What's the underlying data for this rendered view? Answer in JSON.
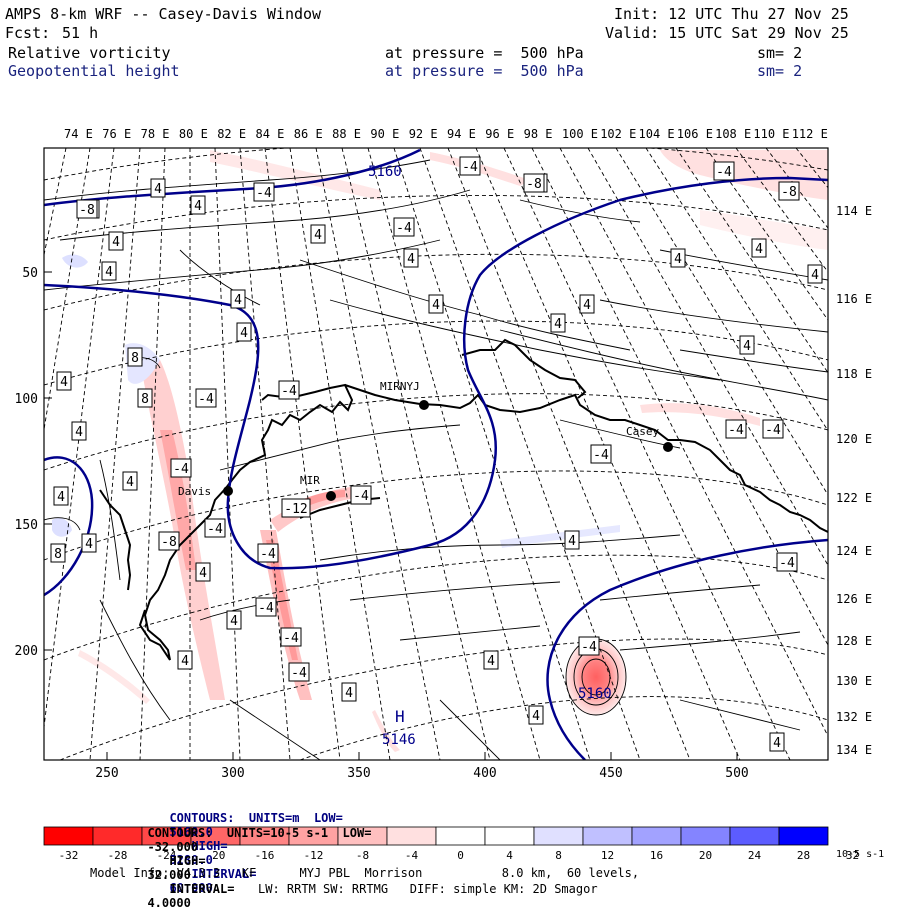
{
  "header": {
    "title": "AMPS 8-km WRF -- Casey-Davis Window",
    "fcst_label": "Fcst:",
    "fcst_value": "51 h",
    "init": "Init: 12 UTC Thu 27 Nov 25",
    "valid": "Valid: 15 UTC Sat 29 Nov 25",
    "field1": {
      "name": "Relative vorticity",
      "level": "at pressure =  500 hPa",
      "sm": "sm= 2"
    },
    "field2": {
      "name": "Geopotential height",
      "level": "at pressure =  500 hPa",
      "sm": "sm= 2"
    }
  },
  "lon_top": [
    "74 E",
    "76 E",
    "78 E",
    "80 E",
    "82 E",
    "84 E",
    "86 E",
    "88 E",
    "90 E",
    "92 E",
    "94 E",
    "96 E",
    "98 E",
    "100 E",
    "102 E",
    "104 E",
    "106 E",
    "108 E",
    "110 E",
    "112 E"
  ],
  "lon_right": [
    "114 E",
    "116 E",
    "118 E",
    "120 E",
    "122 E",
    "124 E",
    "126 E",
    "128 E",
    "130 E",
    "132 E",
    "134 E"
  ],
  "y_ticks": [
    "50",
    "100",
    "150",
    "200"
  ],
  "x_ticks": [
    "250",
    "300",
    "350",
    "400",
    "450",
    "500"
  ],
  "stations": [
    {
      "name": "MIRNYJ"
    },
    {
      "name": "Casey"
    },
    {
      "name": "Davis"
    },
    {
      "name": "MIR"
    }
  ],
  "height_labels": [
    "5160",
    "5160",
    "5160",
    "5146"
  ],
  "height_low_marker": "H",
  "vort_labels": [
    "-4",
    "-4",
    "-4",
    "-4",
    "-4",
    "-4",
    "-4",
    "-4",
    "-4",
    "-4",
    "-4",
    "-4",
    "-4",
    "-4",
    "-4",
    "-4",
    "-4",
    "-4",
    "-4",
    "-4",
    "4",
    "4",
    "4",
    "4",
    "4",
    "4",
    "4",
    "4",
    "4",
    "4",
    "4",
    "4",
    "4",
    "4",
    "4",
    "4",
    "4",
    "4",
    "4",
    "4",
    "4",
    "4",
    "4",
    "4",
    "4",
    "4",
    "4",
    "4",
    "-8",
    "-8",
    "-8",
    "-8",
    "8",
    "8",
    "8",
    "-12"
  ],
  "contour_info": {
    "line1": {
      "label": "CONTOURS:  UNITS=m  LOW=",
      "low": "5160.0",
      "high_label": "HIGH=",
      "high": "5280.0",
      "int_label": "INTERVAL=",
      "interval": "60.000"
    },
    "line2": {
      "label": "CONTOURS:  UNITS=10-5 s-1  LOW=",
      "low": "-32.000",
      "high_label": "HIGH=",
      "high": "32.000",
      "int_label": "INTERVAL=",
      "interval": "4.0000"
    }
  },
  "colorbar": {
    "labels": [
      "-32",
      "-28",
      "-24",
      "-20",
      "-16",
      "-12",
      "-8",
      "-4",
      "0",
      "4",
      "8",
      "12",
      "16",
      "20",
      "24",
      "28",
      "32"
    ],
    "unit": "10-5 s-1",
    "colors": [
      "#ff0000",
      "#ff2020",
      "#ff4040",
      "#ff6060",
      "#ff8080",
      "#ffa0a0",
      "#ffc0c0",
      "#ffe0e0",
      "#ffffff",
      "#ffffff",
      "#e0e0ff",
      "#c0c0ff",
      "#a0a0ff",
      "#8080ff",
      "#6060ff",
      "#4040ff",
      "#0000ff"
    ]
  },
  "model_info": {
    "line1": "Model Info: V4.3.3   KF      MYJ PBL  Morrison           8.0 km,  60 levels,",
    "line2": "LW: RRTM SW: RRTMG   DIFF: simple KM: 2D Smagor"
  }
}
